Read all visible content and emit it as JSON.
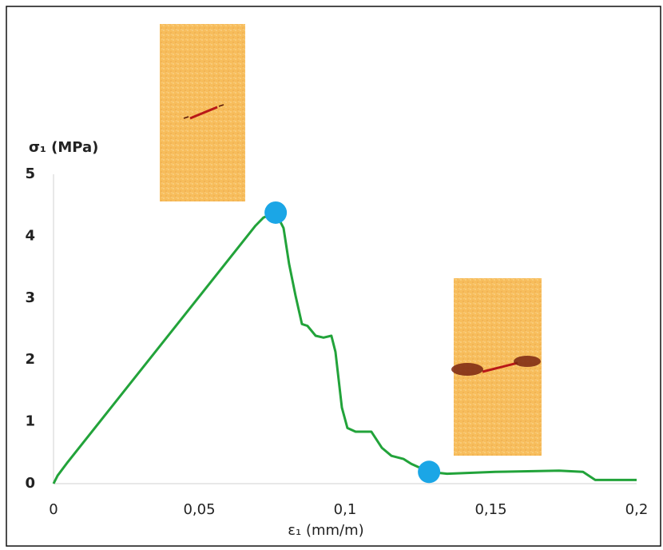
{
  "chart_data": {
    "type": "line",
    "ylabel": "σ₁ (MPa)",
    "xlabel": "ε₁ (mm/m)",
    "x": [
      0,
      0.0014,
      0.0049,
      0.0693,
      0.072,
      0.0762,
      0.0789,
      0.0808,
      0.083,
      0.0852,
      0.0871,
      0.0899,
      0.0926,
      0.0953,
      0.0967,
      0.0989,
      0.1008,
      0.1036,
      0.109,
      0.1126,
      0.1159,
      0.12,
      0.1227,
      0.1288,
      0.135,
      0.1515,
      0.1734,
      0.1816,
      0.1858,
      0.2
    ],
    "values": [
      0,
      0.13,
      0.35,
      4.17,
      4.3,
      4.38,
      4.13,
      3.55,
      3.04,
      2.58,
      2.55,
      2.39,
      2.36,
      2.39,
      2.13,
      1.23,
      0.9,
      0.84,
      0.84,
      0.58,
      0.45,
      0.4,
      0.32,
      0.19,
      0.16,
      0.19,
      0.21,
      0.19,
      0.06,
      0.06
    ],
    "color": "#22a33a",
    "highlight_points": {
      "x": [
        0.0762,
        0.1288
      ],
      "values": [
        4.38,
        0.19
      ],
      "color": "#1ba6e6"
    },
    "xlim": [
      0,
      0.2
    ],
    "ylim": [
      0,
      5
    ],
    "xticks": [
      0,
      {
        "value": 0.05,
        "label": "0,05"
      },
      {
        "value": 0.1,
        "label": "0,1"
      },
      {
        "value": 0.15,
        "label": "0,15"
      },
      {
        "value": 0.2,
        "label": "0,2"
      }
    ],
    "yticks": [
      0,
      1,
      2,
      3,
      4,
      5
    ],
    "grid": false
  }
}
